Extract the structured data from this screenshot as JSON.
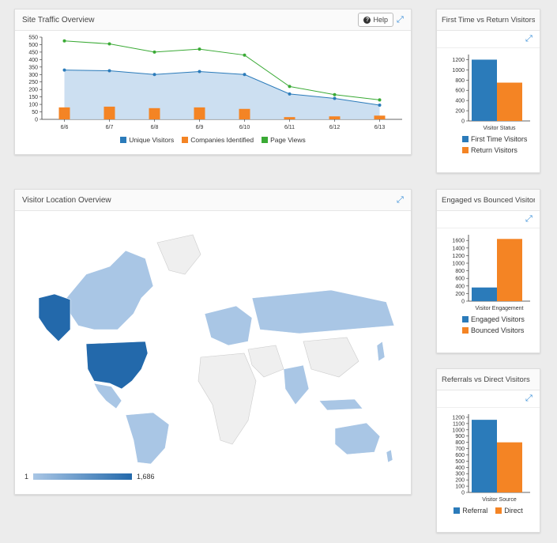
{
  "colors": {
    "blue": "#2b7bba",
    "orange": "#f48424",
    "green": "#3aaa35",
    "area": "#c6dbef",
    "map_dark": "#2369ab",
    "map_light": "#a9c6e5",
    "land": "#efefef"
  },
  "traffic": {
    "title": "Site Traffic Overview",
    "help_label": "Help",
    "legend": [
      "Unique Visitors",
      "Companies Identified",
      "Page Views"
    ],
    "chart_data": {
      "type": "line",
      "categories": [
        "6/6",
        "6/7",
        "6/8",
        "6/9",
        "6/10",
        "6/11",
        "6/12",
        "6/13"
      ],
      "yticks": [
        "550",
        "500",
        "450",
        "400",
        "350",
        "300",
        "250",
        "200",
        "150",
        "100",
        "50",
        "0"
      ],
      "ylim": [
        0,
        550
      ],
      "series": [
        {
          "name": "Unique Visitors",
          "type": "area",
          "values": [
            330,
            325,
            300,
            320,
            300,
            170,
            140,
            95
          ]
        },
        {
          "name": "Companies Identified",
          "type": "bar",
          "values": [
            80,
            85,
            75,
            80,
            70,
            15,
            20,
            25
          ]
        },
        {
          "name": "Page Views",
          "type": "line",
          "values": [
            525,
            505,
            450,
            470,
            430,
            220,
            165,
            130
          ]
        }
      ]
    }
  },
  "location": {
    "title": "Visitor Location Overview",
    "scale_min": "1",
    "scale_max": "1,686"
  },
  "first_return": {
    "title": "First Time vs Return Visitors",
    "axis_label": "Visitor Status",
    "legend": [
      "First Time Visitors",
      "Return Visitors"
    ],
    "chart_data": {
      "type": "bar",
      "categories": [
        "First Time Visitors",
        "Return Visitors"
      ],
      "values": [
        1200,
        750
      ],
      "ylim": [
        0,
        1300
      ],
      "yticks": [
        "1200",
        "1000",
        "800",
        "600",
        "400",
        "200",
        "0"
      ]
    }
  },
  "engaged": {
    "title": "Engaged vs Bounced Visitors",
    "axis_label": "Visitor Engagement",
    "legend": [
      "Engaged Visitors",
      "Bounced Visitors"
    ],
    "chart_data": {
      "type": "bar",
      "categories": [
        "Engaged Visitors",
        "Bounced Visitors"
      ],
      "values": [
        360,
        1640
      ],
      "ylim": [
        0,
        1750
      ],
      "yticks": [
        "1600",
        "1400",
        "1200",
        "1000",
        "800",
        "600",
        "400",
        "200",
        "0"
      ]
    }
  },
  "referrals": {
    "title": "Referrals vs Direct Visitors",
    "axis_label": "Visitor Source",
    "legend": [
      "Referral",
      "Direct"
    ],
    "chart_data": {
      "type": "bar",
      "categories": [
        "Referral",
        "Direct"
      ],
      "values": [
        1160,
        800
      ],
      "ylim": [
        0,
        1250
      ],
      "yticks": [
        "1200",
        "1100",
        "1000",
        "900",
        "800",
        "700",
        "600",
        "500",
        "400",
        "300",
        "200",
        "100",
        "0"
      ]
    }
  }
}
